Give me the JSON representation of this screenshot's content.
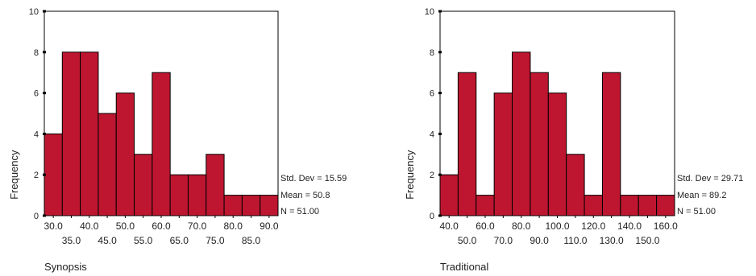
{
  "colors": {
    "bar_fill": "#BE1630",
    "bar_stroke": "#000000",
    "axis": "#000000"
  },
  "chart_data": [
    {
      "type": "bar",
      "xlabel": "Synopsis",
      "ylabel": "Frequency",
      "ylim": [
        0,
        10
      ],
      "y_ticks": [
        "0",
        "2",
        "4",
        "6",
        "8",
        "10"
      ],
      "bin_centers": [
        30,
        35,
        40,
        45,
        50,
        55,
        60,
        65,
        70,
        75,
        80,
        85,
        90
      ],
      "values": [
        4,
        8,
        8,
        5,
        6,
        3,
        7,
        2,
        2,
        3,
        1,
        1,
        1
      ],
      "tick_labels": [
        "30.0",
        "35.0",
        "40.0",
        "45.0",
        "50.0",
        "55.0",
        "60.0",
        "65.0",
        "70.0",
        "75.0",
        "80.0",
        "85.0",
        "90.0"
      ],
      "stats": {
        "std_dev": "Std. Dev = 15.59",
        "mean": "Mean = 50.8",
        "n": "N = 51.00"
      }
    },
    {
      "type": "bar",
      "xlabel": "Traditional",
      "ylabel": "Frequency",
      "ylim": [
        0,
        10
      ],
      "y_ticks": [
        "0",
        "2",
        "4",
        "6",
        "8",
        "10"
      ],
      "bin_centers": [
        40,
        50,
        60,
        70,
        80,
        90,
        100,
        110,
        120,
        130,
        140,
        150,
        160
      ],
      "values": [
        2,
        7,
        1,
        6,
        8,
        7,
        6,
        3,
        1,
        7,
        1,
        1,
        1
      ],
      "tick_labels": [
        "40.0",
        "50.0",
        "60.0",
        "70.0",
        "80.0",
        "90.0",
        "100.0",
        "110.0",
        "120.0",
        "130.0",
        "140.0",
        "150.0",
        "160.0"
      ],
      "stats": {
        "std_dev": "Std. Dev = 29.71",
        "mean": "Mean = 89.2",
        "n": "N = 51.00"
      }
    }
  ]
}
